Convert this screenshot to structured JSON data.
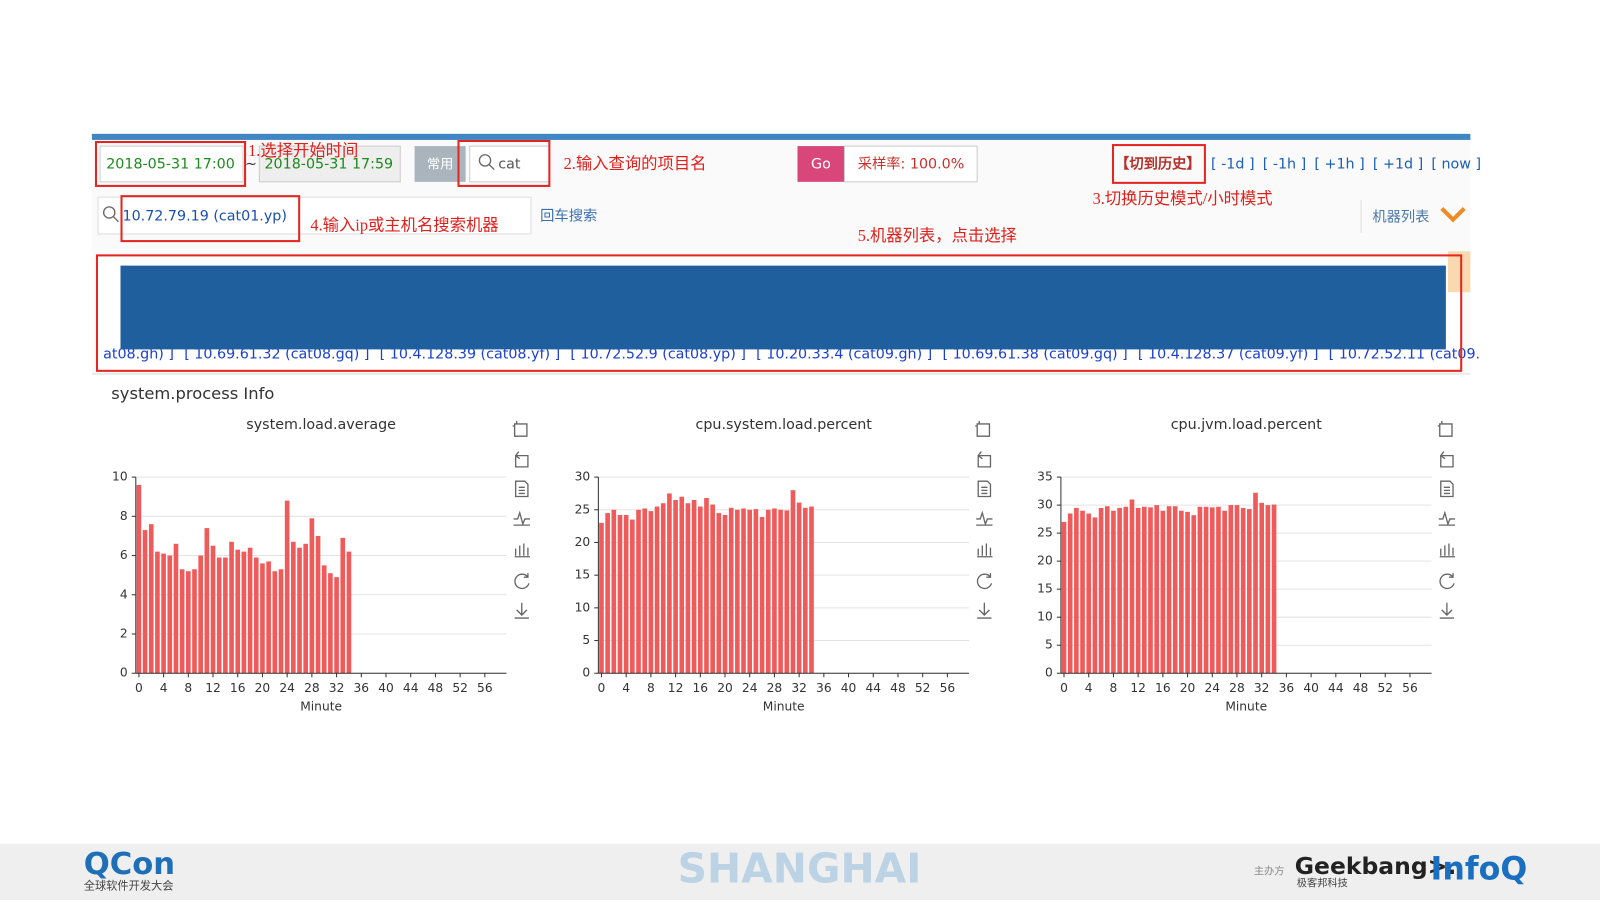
{
  "toolbar": {
    "start_time": "2018-05-31 17:00",
    "separator": "~",
    "end_time": "2018-05-31  17:59",
    "common": "常用",
    "project": "cat",
    "go": "Go",
    "sample_rate": "采样率: 100.0%",
    "history": "【切到历史】",
    "time_links": [
      "[ -1d ]",
      "[ -1h ]",
      "[ +1h ]",
      "[ +1d ]",
      "[ now ]"
    ]
  },
  "search": {
    "ip": "10.72.79.19 (cat01.yp)",
    "enter_search": "回车搜索",
    "machine_list": "机器列表"
  },
  "annotations": [
    "1.选择开始时间",
    "2.输入查询的项目名",
    "3.切换历史模式/小时模式",
    "4.输入ip或主机名搜索机器",
    "5.机器列表，点击选择"
  ],
  "machines": {
    "fragment": "at08.gh) ]",
    "items": [
      "[ 10.69.61.32 (cat08.gq) ]",
      "[ 10.4.128.39 (cat08.yf) ]",
      "[ 10.72.52.9 (cat08.yp) ]",
      "[ 10.20.33.4 (cat09.gh) ]",
      "[ 10.69.61.38 (cat09.gq) ]",
      "[ 10.4.128.37 (cat09.yf) ]",
      "[ 10.72.52.11 (cat09."
    ]
  },
  "section_title": "system.process Info",
  "charts": [
    {
      "type": "bar",
      "title": "system.load.average",
      "x_label": "Minute",
      "color": "#ef5b5b",
      "grid": true,
      "x": [
        0,
        1,
        2,
        3,
        4,
        5,
        6,
        7,
        8,
        9,
        10,
        11,
        12,
        13,
        14,
        15,
        16,
        17,
        18,
        19,
        20,
        21,
        22,
        23,
        24,
        25,
        26,
        27,
        28,
        29,
        30,
        31,
        32,
        33,
        34
      ],
      "values": [
        9.6,
        7.3,
        7.6,
        6.2,
        6.1,
        6.0,
        6.6,
        5.3,
        5.2,
        5.3,
        6.0,
        7.4,
        6.5,
        5.9,
        5.9,
        6.7,
        6.3,
        6.2,
        6.4,
        5.9,
        5.6,
        5.7,
        5.2,
        5.3,
        8.8,
        6.7,
        6.4,
        6.6,
        7.9,
        7.0,
        5.5,
        5.1,
        4.9,
        6.9,
        6.2
      ],
      "xlim": [
        -0.5,
        59.5
      ],
      "xticks": [
        0,
        4,
        8,
        12,
        16,
        20,
        24,
        28,
        32,
        36,
        40,
        44,
        48,
        52,
        56
      ],
      "ylim": [
        0,
        10
      ],
      "yticks": [
        0,
        2,
        4,
        6,
        8,
        10
      ]
    },
    {
      "type": "bar",
      "title": "cpu.system.load.percent",
      "x_label": "Minute",
      "color": "#ef5b5b",
      "grid": true,
      "x": [
        0,
        1,
        2,
        3,
        4,
        5,
        6,
        7,
        8,
        9,
        10,
        11,
        12,
        13,
        14,
        15,
        16,
        17,
        18,
        19,
        20,
        21,
        22,
        23,
        24,
        25,
        26,
        27,
        28,
        29,
        30,
        31,
        32,
        33,
        34
      ],
      "values": [
        23,
        24.5,
        25,
        24.2,
        24.2,
        23.5,
        25,
        25.2,
        24.8,
        25.5,
        26,
        27.5,
        26.5,
        27,
        26,
        26.5,
        25.5,
        26.8,
        25.8,
        24.5,
        24.2,
        25.3,
        25,
        25.2,
        25,
        25.1,
        23.9,
        25,
        25.2,
        25,
        24.9,
        28,
        26.1,
        25.3,
        25.5
      ],
      "xlim": [
        -0.5,
        59.5
      ],
      "xticks": [
        0,
        4,
        8,
        12,
        16,
        20,
        24,
        28,
        32,
        36,
        40,
        44,
        48,
        52,
        56
      ],
      "ylim": [
        0,
        30
      ],
      "yticks": [
        0,
        5,
        10,
        15,
        20,
        25,
        30
      ]
    },
    {
      "type": "bar",
      "title": "cpu.jvm.load.percent",
      "x_label": "Minute",
      "color": "#ef5b5b",
      "grid": true,
      "x": [
        0,
        1,
        2,
        3,
        4,
        5,
        6,
        7,
        8,
        9,
        10,
        11,
        12,
        13,
        14,
        15,
        16,
        17,
        18,
        19,
        20,
        21,
        22,
        23,
        24,
        25,
        26,
        27,
        28,
        29,
        30,
        31,
        32,
        33,
        34
      ],
      "values": [
        27,
        28.5,
        29.5,
        29,
        28.5,
        27.8,
        29.5,
        29.8,
        29,
        29.5,
        29.7,
        31,
        29.5,
        29.7,
        29.6,
        30,
        29,
        29.8,
        29.8,
        29,
        28.8,
        28.2,
        29.7,
        29.7,
        29.6,
        29.7,
        29,
        30,
        30,
        29.5,
        29.3,
        32.2,
        30.4,
        30,
        30.1
      ],
      "xlim": [
        -0.5,
        59.5
      ],
      "xticks": [
        0,
        4,
        8,
        12,
        16,
        20,
        24,
        28,
        32,
        36,
        40,
        44,
        48,
        52,
        56
      ],
      "ylim": [
        0,
        35
      ],
      "yticks": [
        0,
        5,
        10,
        15,
        20,
        25,
        30,
        35
      ]
    }
  ],
  "footer": {
    "qcon": "QCon",
    "qcon_sub": "全球软件开发大会",
    "city": "SHANGHAI",
    "host": "主办方",
    "geekbang": "Geekbang>.",
    "geekbang_sub": "极客邦科技",
    "infoq": "InfoQ"
  }
}
